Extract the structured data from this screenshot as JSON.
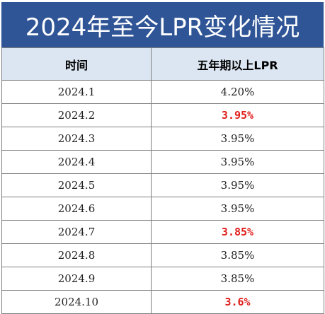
{
  "title": "2024年至今LPR变化情况",
  "table": {
    "headers": [
      "时间",
      "五年期以上LPR"
    ],
    "rows": [
      {
        "date": "2024.1",
        "rate": "4.20%",
        "changed": false
      },
      {
        "date": "2024.2",
        "rate": "3.95%",
        "changed": true
      },
      {
        "date": "2024.3",
        "rate": "3.95%",
        "changed": false
      },
      {
        "date": "2024.4",
        "rate": "3.95%",
        "changed": false
      },
      {
        "date": "2024.5",
        "rate": "3.95%",
        "changed": false
      },
      {
        "date": "2024.6",
        "rate": "3.95%",
        "changed": false
      },
      {
        "date": "2024.7",
        "rate": "3.85%",
        "changed": true
      },
      {
        "date": "2024.8",
        "rate": "3.85%",
        "changed": false
      },
      {
        "date": "2024.9",
        "rate": "3.85%",
        "changed": false
      },
      {
        "date": "2024.10",
        "rate": "3.6%",
        "changed": true
      }
    ]
  },
  "colors": {
    "title_bg": "#2f5597",
    "header_bg": "#dce6f2",
    "highlight_text": "#e0201c"
  }
}
